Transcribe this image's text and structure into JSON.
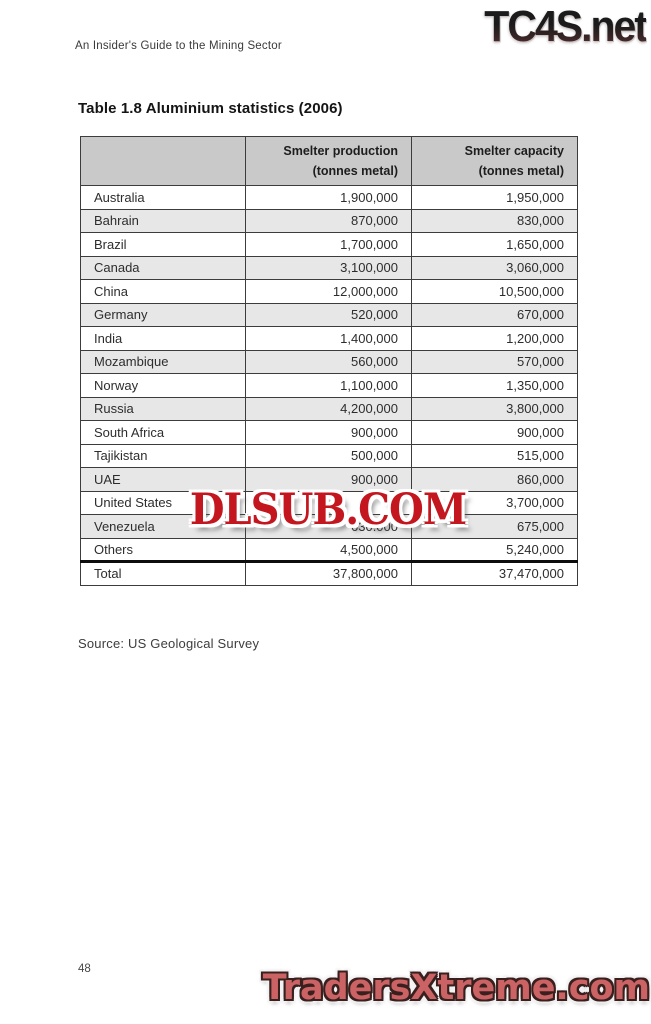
{
  "page": {
    "running_head": "An Insider's Guide to the Mining Sector",
    "page_number": "48",
    "source": "Source: US Geological Survey"
  },
  "watermarks": {
    "top_right": "TC4S.net",
    "middle": "DLSUB.COM",
    "bottom_right": "TradersXtreme.com"
  },
  "colors": {
    "header_bg": "#c9c9c9",
    "shaded_row_bg": "#e7e7e7",
    "border": "#3c3c3c",
    "dlsub_red": "#c4161e",
    "traders_red": "#cb6263"
  },
  "table": {
    "title": "Table 1.8 Aluminium statistics (2006)",
    "columns": [
      {
        "line1": "",
        "line2": ""
      },
      {
        "line1": "Smelter production",
        "line2": "(tonnes metal)"
      },
      {
        "line1": "Smelter capacity",
        "line2": "(tonnes metal)"
      }
    ],
    "rows": [
      {
        "country": "Australia",
        "production": "1,900,000",
        "capacity": "1,950,000",
        "shaded": false,
        "is_total": false
      },
      {
        "country": "Bahrain",
        "production": "870,000",
        "capacity": "830,000",
        "shaded": true,
        "is_total": false
      },
      {
        "country": "Brazil",
        "production": "1,700,000",
        "capacity": "1,650,000",
        "shaded": false,
        "is_total": false
      },
      {
        "country": "Canada",
        "production": "3,100,000",
        "capacity": "3,060,000",
        "shaded": true,
        "is_total": false
      },
      {
        "country": "China",
        "production": "12,000,000",
        "capacity": "10,500,000",
        "shaded": false,
        "is_total": false
      },
      {
        "country": "Germany",
        "production": "520,000",
        "capacity": "670,000",
        "shaded": true,
        "is_total": false
      },
      {
        "country": "India",
        "production": "1,400,000",
        "capacity": "1,200,000",
        "shaded": false,
        "is_total": false
      },
      {
        "country": "Mozambique",
        "production": "560,000",
        "capacity": "570,000",
        "shaded": true,
        "is_total": false
      },
      {
        "country": "Norway",
        "production": "1,100,000",
        "capacity": "1,350,000",
        "shaded": false,
        "is_total": false
      },
      {
        "country": "Russia",
        "production": "4,200,000",
        "capacity": "3,800,000",
        "shaded": true,
        "is_total": false
      },
      {
        "country": "South Africa",
        "production": "900,000",
        "capacity": "900,000",
        "shaded": false,
        "is_total": false
      },
      {
        "country": "Tajikistan",
        "production": "500,000",
        "capacity": "515,000",
        "shaded": false,
        "is_total": false
      },
      {
        "country": "UAE",
        "production": "900,000",
        "capacity": "860,000",
        "shaded": true,
        "is_total": false
      },
      {
        "country": "United States",
        "production": "",
        "capacity": "3,700,000",
        "shaded": false,
        "is_total": false
      },
      {
        "country": "Venezuela",
        "production": "630.000",
        "capacity": "675,000",
        "shaded": true,
        "is_total": false
      },
      {
        "country": "Others",
        "production": "4,500,000",
        "capacity": "5,240,000",
        "shaded": false,
        "is_total": false
      },
      {
        "country": "Total",
        "production": "37,800,000",
        "capacity": "37,470,000",
        "shaded": false,
        "is_total": true
      }
    ]
  }
}
